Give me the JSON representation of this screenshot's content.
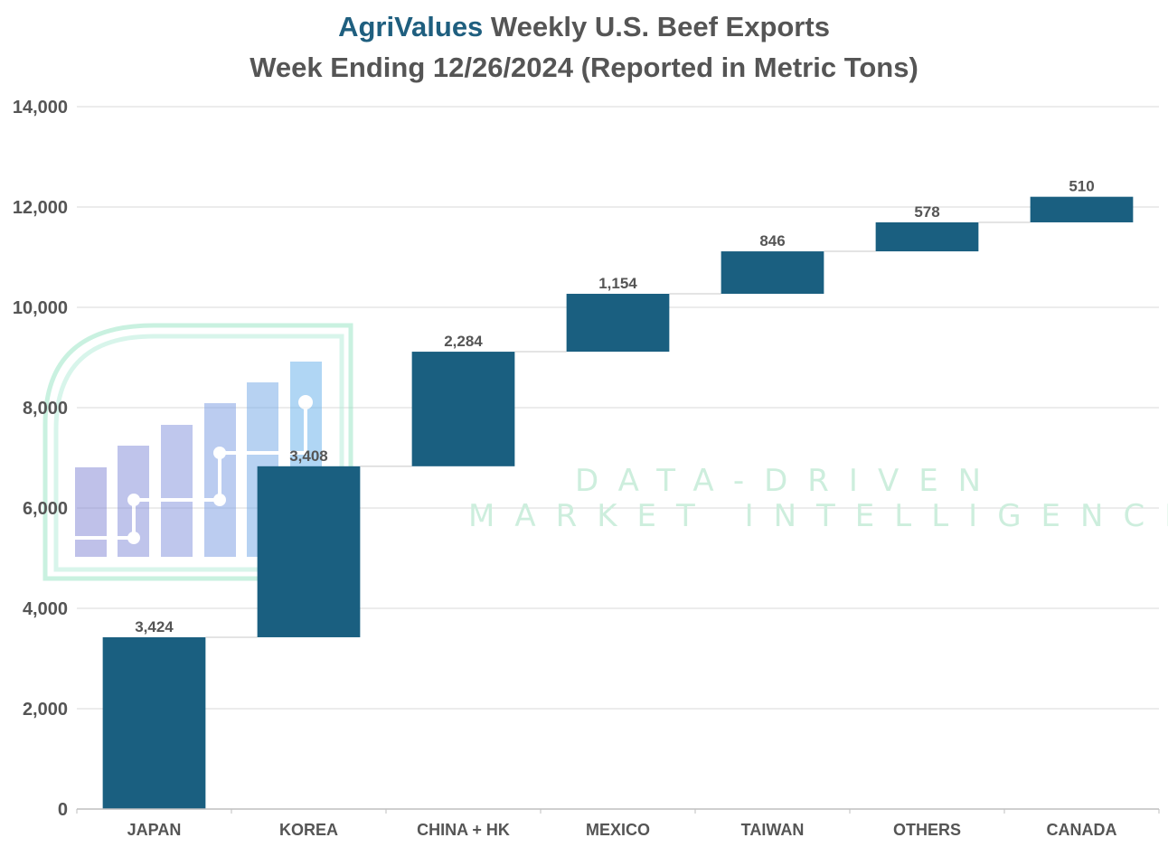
{
  "title": {
    "brand": "AgriValues",
    "rest": " Weekly U.S. Beef Exports",
    "line2": "Week Ending 12/26/2024 (Reported in Metric Tons)"
  },
  "watermark": {
    "line1": "DATA-DRIVEN",
    "line2": "MARKET INTELLIGENCE"
  },
  "colors": {
    "bar": "#1a5f80",
    "text": "#555555",
    "brand": "#1f5f7f",
    "grid": "#d9d9d9"
  },
  "chart_data": {
    "type": "bar",
    "subtype": "waterfall",
    "categories": [
      "JAPAN",
      "KOREA",
      "CHINA + HK",
      "MEXICO",
      "TAIWAN",
      "OTHERS",
      "CANADA"
    ],
    "values": [
      3424,
      3408,
      2284,
      1154,
      846,
      578,
      510
    ],
    "data_labels": [
      "3,424",
      "3,408",
      "2,284",
      "1,154",
      "846",
      "578",
      "510"
    ],
    "ylim": [
      0,
      14000
    ],
    "yticks": [
      0,
      2000,
      4000,
      6000,
      8000,
      10000,
      12000,
      14000
    ],
    "ytick_labels": [
      "0",
      "2,000",
      "4,000",
      "6,000",
      "8,000",
      "10,000",
      "12,000",
      "14,000"
    ],
    "grid": true,
    "legend": "none"
  }
}
